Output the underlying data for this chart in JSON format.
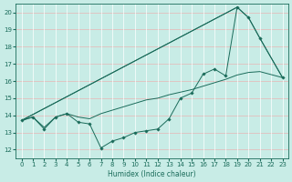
{
  "xlabel": "Humidex (Indice chaleur)",
  "xlim": [
    -0.5,
    23.5
  ],
  "ylim": [
    11.5,
    20.5
  ],
  "yticks": [
    12,
    13,
    14,
    15,
    16,
    17,
    18,
    19,
    20
  ],
  "xticks": [
    0,
    1,
    2,
    3,
    4,
    5,
    6,
    7,
    8,
    9,
    10,
    11,
    12,
    13,
    14,
    15,
    16,
    17,
    18,
    19,
    20,
    21,
    22,
    23
  ],
  "bg_color": "#c8ece6",
  "line_color": "#1a6b5a",
  "grid_color_h": "#e8b4b4",
  "grid_color_v": "#ffffff",
  "series_zigzag": {
    "x": [
      0,
      1,
      2,
      3,
      4,
      5,
      6,
      7,
      8,
      9,
      10,
      11,
      12,
      13,
      14,
      15,
      16,
      17,
      18,
      19,
      20,
      21,
      23
    ],
    "y": [
      13.7,
      13.9,
      13.2,
      13.9,
      14.1,
      13.6,
      13.5,
      12.1,
      12.5,
      12.7,
      13.0,
      13.1,
      13.2,
      13.8,
      15.0,
      15.3,
      16.4,
      16.7,
      16.3,
      20.3,
      19.7,
      18.5,
      16.2
    ]
  },
  "series_trend": {
    "x": [
      0,
      1,
      2,
      3,
      4,
      5,
      6,
      7,
      8,
      9,
      10,
      11,
      12,
      13,
      14,
      15,
      16,
      17,
      18,
      19,
      20,
      21,
      23
    ],
    "y": [
      13.7,
      13.9,
      13.3,
      13.9,
      14.1,
      13.9,
      13.8,
      14.1,
      14.3,
      14.5,
      14.7,
      14.9,
      15.0,
      15.2,
      15.35,
      15.5,
      15.7,
      15.9,
      16.1,
      16.35,
      16.5,
      16.55,
      16.2
    ]
  },
  "series_envelope": {
    "x": [
      0,
      19,
      20,
      21,
      23
    ],
    "y": [
      13.7,
      20.3,
      19.7,
      18.5,
      16.2
    ]
  }
}
